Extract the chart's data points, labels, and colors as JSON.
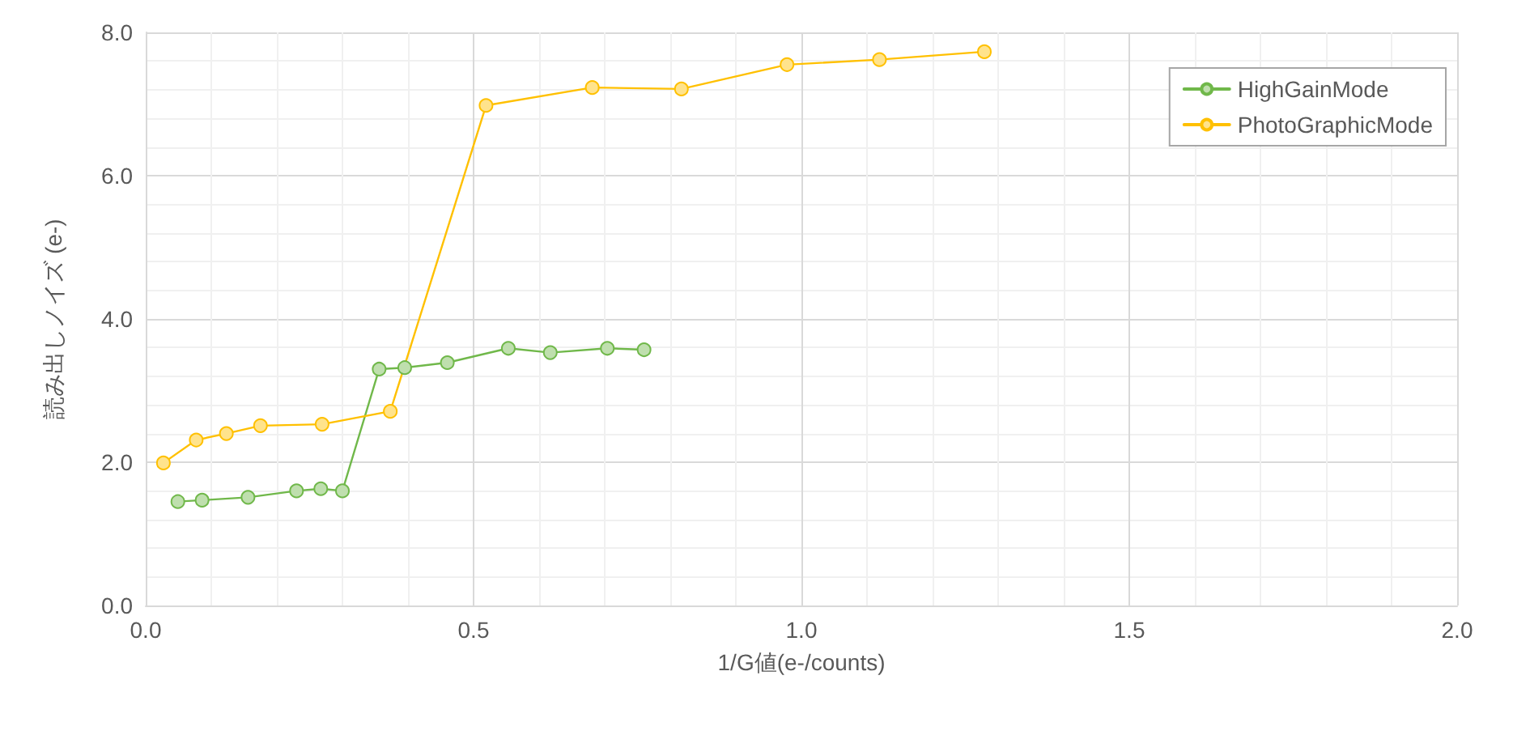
{
  "chart_data": {
    "type": "line",
    "xlabel": "1/G値(e-/counts)",
    "ylabel": "読み出しノイズ (e-)",
    "xlim": [
      0,
      2.0
    ],
    "xticks": [
      {
        "value": 0,
        "label": "0.0"
      },
      {
        "value": 0.5,
        "label": "0.5"
      },
      {
        "value": 1,
        "label": "1.0"
      },
      {
        "value": 1.5,
        "label": "1.5"
      },
      {
        "value": 2,
        "label": "2.0"
      }
    ],
    "ylim": [
      0,
      8
    ],
    "yticks": [
      {
        "value": 0,
        "label": "0.0"
      },
      {
        "value": 2,
        "label": "2.0"
      },
      {
        "value": 4,
        "label": "4.0"
      },
      {
        "value": 6,
        "label": "6.0"
      },
      {
        "value": 8,
        "label": "8.0"
      }
    ],
    "grid": true,
    "legend": "top right",
    "marker": "circle",
    "line_style": "solid",
    "series": [
      {
        "name": "HighGainMode",
        "color": "#70b84a",
        "x": [
          0.049,
          0.086,
          0.156,
          0.23,
          0.267,
          0.3,
          0.356,
          0.395,
          0.46,
          0.553,
          0.617,
          0.704,
          0.76
        ],
        "values": [
          1.45,
          1.47,
          1.51,
          1.6,
          1.63,
          1.6,
          3.3,
          3.32,
          3.39,
          3.59,
          3.53,
          3.59,
          3.57
        ]
      },
      {
        "name": "PhotoGraphicMode",
        "color": "#ffc000",
        "x": [
          0.027,
          0.077,
          0.123,
          0.175,
          0.269,
          0.373,
          0.519,
          0.681,
          0.817,
          0.978,
          1.119,
          1.279
        ],
        "values": [
          1.99,
          2.31,
          2.4,
          2.51,
          2.53,
          2.71,
          6.98,
          7.23,
          7.21,
          7.55,
          7.62,
          7.73
        ]
      }
    ]
  }
}
